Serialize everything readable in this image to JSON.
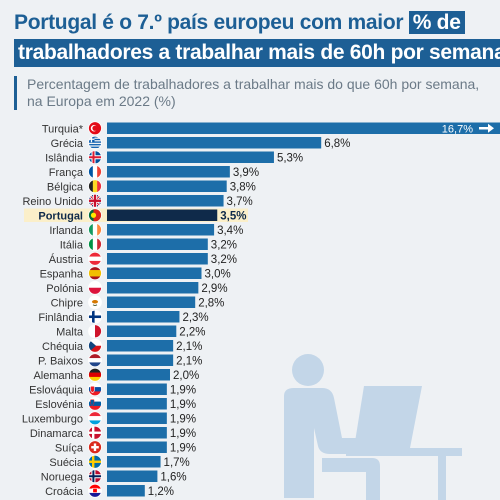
{
  "header": {
    "title_part1": "Portugal é o 7.º país europeu com maior ",
    "title_highlight": "% de",
    "title_line2": "trabalhadores a trabalhar mais de 60h por semana",
    "subtitle_line1": "Percentagem de trabalhadores a trabalhar mais do que 60h por semana,",
    "subtitle_line2": "na Europa em 2022 (%)"
  },
  "colors": {
    "bar": "#1d6ea9",
    "highlight_bar": "#0f2a4a",
    "highlight_bg": "#fbefc9",
    "title": "#1d5f95"
  },
  "chart_data": {
    "type": "bar",
    "orientation": "horizontal",
    "highlight": "Portugal",
    "overflow_arrow_on": "Turquia*",
    "categories": [
      "Turquia*",
      "Grécia",
      "Islândia",
      "França",
      "Bélgica",
      "Reino Unido",
      "Portugal",
      "Irlanda",
      "Itália",
      "Áustria",
      "Espanha",
      "Polónia",
      "Chipre",
      "Finlândia",
      "Malta",
      "Chéquia",
      "P. Baixos",
      "Alemanha",
      "Eslováquia",
      "Eslovénia",
      "Luxemburgo",
      "Dinamarca",
      "Suíça",
      "Suécia",
      "Noruega",
      "Croácia"
    ],
    "values": [
      16.7,
      6.8,
      5.3,
      3.9,
      3.8,
      3.7,
      3.5,
      3.4,
      3.2,
      3.2,
      3.0,
      2.9,
      2.8,
      2.3,
      2.2,
      2.1,
      2.1,
      2.0,
      1.9,
      1.9,
      1.9,
      1.9,
      1.9,
      1.7,
      1.6,
      1.2
    ],
    "value_labels": [
      "16,7%",
      "6,8%",
      "5,3%",
      "3,9%",
      "3,8%",
      "3,7%",
      "3,5%",
      "3,4%",
      "3,2%",
      "3,2%",
      "3,0%",
      "2,9%",
      "2,8%",
      "2,3%",
      "2,2%",
      "2,1%",
      "2,1%",
      "2,0%",
      "1,9%",
      "1,9%",
      "1,9%",
      "1,9%",
      "1,9%",
      "1,7%",
      "1,6%",
      "1,2%"
    ],
    "flags": [
      "flag-turkey-icon",
      "flag-greece-icon",
      "flag-iceland-icon",
      "flag-france-icon",
      "flag-belgium-icon",
      "flag-uk-icon",
      "flag-portugal-icon",
      "flag-ireland-icon",
      "flag-italy-icon",
      "flag-austria-icon",
      "flag-spain-icon",
      "flag-poland-icon",
      "flag-cyprus-icon",
      "flag-finland-icon",
      "flag-malta-icon",
      "flag-czechia-icon",
      "flag-netherlands-icon",
      "flag-germany-icon",
      "flag-slovakia-icon",
      "flag-slovenia-icon",
      "flag-luxembourg-icon",
      "flag-denmark-icon",
      "flag-switzerland-icon",
      "flag-sweden-icon",
      "flag-norway-icon",
      "flag-croatia-icon"
    ]
  },
  "decoration": {
    "illustration": "person-at-laptop-icon"
  }
}
